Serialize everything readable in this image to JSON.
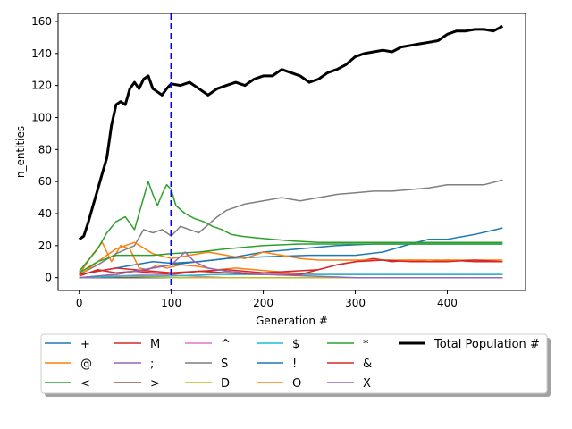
{
  "chart_data": {
    "type": "line",
    "title": "",
    "xlabel": "Generation #",
    "ylabel": "n_entities",
    "xlim": [
      -23,
      485
    ],
    "ylim": [
      -8,
      165
    ],
    "xticks": [
      0,
      100,
      200,
      300,
      400
    ],
    "yticks": [
      0,
      20,
      40,
      60,
      80,
      100,
      120,
      140,
      160
    ],
    "grid": false,
    "vline": {
      "x": 100,
      "color": "#0000ff",
      "style": "dashed"
    },
    "legend_placement": "below-plot",
    "series": [
      {
        "name": "+",
        "color": "#1f77b4",
        "points": [
          [
            0,
            2
          ],
          [
            20,
            4
          ],
          [
            40,
            6
          ],
          [
            60,
            8
          ],
          [
            80,
            10
          ],
          [
            100,
            9
          ],
          [
            130,
            10
          ],
          [
            160,
            12
          ],
          [
            200,
            13
          ],
          [
            250,
            14
          ],
          [
            300,
            14
          ],
          [
            330,
            16
          ],
          [
            360,
            21
          ],
          [
            380,
            24
          ],
          [
            400,
            24
          ],
          [
            430,
            27
          ],
          [
            460,
            31
          ]
        ]
      },
      {
        "name": "@",
        "color": "#ff7f0e",
        "points": [
          [
            0,
            2
          ],
          [
            15,
            15
          ],
          [
            25,
            22
          ],
          [
            35,
            10
          ],
          [
            45,
            20
          ],
          [
            55,
            18
          ],
          [
            65,
            6
          ],
          [
            75,
            5
          ],
          [
            85,
            8
          ],
          [
            95,
            6
          ],
          [
            110,
            8
          ],
          [
            130,
            7
          ],
          [
            150,
            5
          ],
          [
            170,
            6
          ],
          [
            190,
            5
          ],
          [
            210,
            4
          ],
          [
            230,
            3
          ],
          [
            260,
            2
          ],
          [
            300,
            2
          ],
          [
            350,
            2
          ],
          [
            400,
            2
          ],
          [
            460,
            2
          ]
        ]
      },
      {
        "name": "<",
        "color": "#2ca02c",
        "points": [
          [
            0,
            4
          ],
          [
            20,
            18
          ],
          [
            30,
            28
          ],
          [
            40,
            35
          ],
          [
            50,
            38
          ],
          [
            60,
            30
          ],
          [
            70,
            50
          ],
          [
            75,
            60
          ],
          [
            80,
            52
          ],
          [
            85,
            45
          ],
          [
            90,
            52
          ],
          [
            95,
            58
          ],
          [
            100,
            55
          ],
          [
            105,
            45
          ],
          [
            115,
            40
          ],
          [
            125,
            37
          ],
          [
            135,
            35
          ],
          [
            145,
            32
          ],
          [
            155,
            30
          ],
          [
            165,
            27
          ],
          [
            175,
            26
          ],
          [
            190,
            25
          ],
          [
            210,
            24
          ],
          [
            230,
            23
          ],
          [
            260,
            22
          ],
          [
            290,
            22
          ],
          [
            320,
            22
          ],
          [
            360,
            22
          ],
          [
            400,
            22
          ],
          [
            460,
            22
          ]
        ]
      },
      {
        "name": "M",
        "color": "#d62728",
        "points": [
          [
            0,
            1
          ],
          [
            20,
            5
          ],
          [
            40,
            3
          ],
          [
            60,
            4
          ],
          [
            80,
            3
          ],
          [
            100,
            2
          ],
          [
            130,
            4
          ],
          [
            160,
            5
          ],
          [
            200,
            3
          ],
          [
            230,
            4
          ],
          [
            260,
            5
          ],
          [
            280,
            8
          ],
          [
            300,
            10
          ],
          [
            320,
            12
          ],
          [
            340,
            10
          ],
          [
            360,
            11
          ],
          [
            380,
            10
          ],
          [
            400,
            11
          ],
          [
            430,
            10
          ],
          [
            460,
            10
          ]
        ]
      },
      {
        "name": ";",
        "color": "#9467bd",
        "points": [
          [
            0,
            0
          ],
          [
            50,
            0
          ],
          [
            100,
            0
          ],
          [
            200,
            0
          ],
          [
            300,
            0
          ],
          [
            400,
            0
          ],
          [
            460,
            0
          ]
        ]
      },
      {
        "name": ">",
        "color": "#8c564b",
        "points": [
          [
            0,
            0
          ],
          [
            50,
            0
          ],
          [
            100,
            0
          ],
          [
            200,
            0
          ],
          [
            300,
            0
          ],
          [
            400,
            0
          ],
          [
            460,
            0
          ]
        ]
      },
      {
        "name": "^",
        "color": "#e377c2",
        "points": [
          [
            0,
            0
          ],
          [
            40,
            1
          ],
          [
            80,
            2
          ],
          [
            120,
            1
          ],
          [
            160,
            0
          ],
          [
            200,
            0
          ],
          [
            300,
            0
          ],
          [
            400,
            0
          ],
          [
            460,
            0
          ]
        ]
      },
      {
        "name": "S",
        "color": "#7f7f7f",
        "points": [
          [
            0,
            2
          ],
          [
            20,
            8
          ],
          [
            40,
            15
          ],
          [
            60,
            20
          ],
          [
            70,
            30
          ],
          [
            80,
            28
          ],
          [
            90,
            30
          ],
          [
            100,
            26
          ],
          [
            110,
            32
          ],
          [
            120,
            30
          ],
          [
            130,
            28
          ],
          [
            140,
            33
          ],
          [
            150,
            38
          ],
          [
            160,
            42
          ],
          [
            170,
            44
          ],
          [
            180,
            46
          ],
          [
            200,
            48
          ],
          [
            220,
            50
          ],
          [
            240,
            48
          ],
          [
            260,
            50
          ],
          [
            280,
            52
          ],
          [
            300,
            53
          ],
          [
            320,
            54
          ],
          [
            340,
            54
          ],
          [
            360,
            55
          ],
          [
            380,
            56
          ],
          [
            400,
            58
          ],
          [
            420,
            58
          ],
          [
            440,
            58
          ],
          [
            460,
            61
          ]
        ]
      },
      {
        "name": "D",
        "color": "#bcbd22",
        "points": [
          [
            0,
            0
          ],
          [
            50,
            1
          ],
          [
            100,
            0
          ],
          [
            200,
            0
          ],
          [
            300,
            0
          ],
          [
            400,
            0
          ],
          [
            460,
            0
          ]
        ]
      },
      {
        "name": "$",
        "color": "#17becf",
        "points": [
          [
            0,
            0
          ],
          [
            50,
            1
          ],
          [
            100,
            1
          ],
          [
            150,
            2
          ],
          [
            200,
            2
          ],
          [
            250,
            2
          ],
          [
            300,
            2
          ],
          [
            350,
            2
          ],
          [
            400,
            2
          ],
          [
            460,
            2
          ]
        ]
      },
      {
        "name": "!",
        "color": "#1f77b4",
        "points": [
          [
            0,
            0
          ],
          [
            40,
            2
          ],
          [
            80,
            6
          ],
          [
            100,
            8
          ],
          [
            130,
            10
          ],
          [
            160,
            12
          ],
          [
            200,
            16
          ],
          [
            240,
            18
          ],
          [
            280,
            20
          ],
          [
            320,
            21
          ],
          [
            360,
            21
          ],
          [
            400,
            21
          ],
          [
            460,
            21
          ]
        ]
      },
      {
        "name": "O",
        "color": "#ff7f0e",
        "points": [
          [
            0,
            1
          ],
          [
            20,
            10
          ],
          [
            40,
            18
          ],
          [
            60,
            22
          ],
          [
            80,
            15
          ],
          [
            100,
            12
          ],
          [
            120,
            14
          ],
          [
            140,
            16
          ],
          [
            160,
            14
          ],
          [
            180,
            12
          ],
          [
            200,
            16
          ],
          [
            220,
            14
          ],
          [
            240,
            12
          ],
          [
            260,
            11
          ],
          [
            300,
            11
          ],
          [
            360,
            11
          ],
          [
            400,
            11
          ],
          [
            460,
            11
          ]
        ]
      },
      {
        "name": "*",
        "color": "#2ca02c",
        "points": [
          [
            0,
            3
          ],
          [
            20,
            10
          ],
          [
            40,
            14
          ],
          [
            60,
            14
          ],
          [
            80,
            14
          ],
          [
            100,
            15
          ],
          [
            130,
            16
          ],
          [
            160,
            18
          ],
          [
            200,
            20
          ],
          [
            240,
            21
          ],
          [
            280,
            21
          ],
          [
            320,
            21
          ],
          [
            360,
            21
          ],
          [
            400,
            21
          ],
          [
            460,
            21
          ]
        ]
      },
      {
        "name": "&",
        "color": "#d62728",
        "points": [
          [
            0,
            2
          ],
          [
            20,
            4
          ],
          [
            40,
            6
          ],
          [
            60,
            5
          ],
          [
            80,
            4
          ],
          [
            100,
            3
          ],
          [
            130,
            4
          ],
          [
            160,
            3
          ],
          [
            200,
            2
          ],
          [
            240,
            2
          ],
          [
            260,
            5
          ],
          [
            280,
            8
          ],
          [
            300,
            10
          ],
          [
            330,
            11
          ],
          [
            360,
            10
          ],
          [
            400,
            10
          ],
          [
            430,
            11
          ],
          [
            460,
            10
          ]
        ]
      },
      {
        "name": "X",
        "color": "#9467bd",
        "points": [
          [
            0,
            0
          ],
          [
            40,
            2
          ],
          [
            80,
            6
          ],
          [
            100,
            8
          ],
          [
            115,
            16
          ],
          [
            125,
            10
          ],
          [
            140,
            6
          ],
          [
            160,
            4
          ],
          [
            200,
            2
          ],
          [
            250,
            1
          ],
          [
            300,
            0
          ],
          [
            400,
            0
          ],
          [
            460,
            0
          ]
        ]
      },
      {
        "name": "Total Population #",
        "color": "#000000",
        "points": [
          [
            0,
            24
          ],
          [
            5,
            26
          ],
          [
            10,
            35
          ],
          [
            15,
            45
          ],
          [
            20,
            55
          ],
          [
            25,
            65
          ],
          [
            30,
            75
          ],
          [
            35,
            95
          ],
          [
            40,
            108
          ],
          [
            45,
            110
          ],
          [
            50,
            108
          ],
          [
            55,
            118
          ],
          [
            60,
            122
          ],
          [
            65,
            118
          ],
          [
            70,
            124
          ],
          [
            75,
            126
          ],
          [
            80,
            118
          ],
          [
            85,
            116
          ],
          [
            90,
            114
          ],
          [
            95,
            118
          ],
          [
            100,
            121
          ],
          [
            110,
            120
          ],
          [
            120,
            122
          ],
          [
            130,
            118
          ],
          [
            140,
            114
          ],
          [
            150,
            118
          ],
          [
            160,
            120
          ],
          [
            170,
            122
          ],
          [
            180,
            120
          ],
          [
            190,
            124
          ],
          [
            200,
            126
          ],
          [
            210,
            126
          ],
          [
            220,
            130
          ],
          [
            230,
            128
          ],
          [
            240,
            126
          ],
          [
            250,
            122
          ],
          [
            260,
            124
          ],
          [
            270,
            128
          ],
          [
            280,
            130
          ],
          [
            290,
            133
          ],
          [
            300,
            138
          ],
          [
            310,
            140
          ],
          [
            320,
            141
          ],
          [
            330,
            142
          ],
          [
            340,
            141
          ],
          [
            350,
            144
          ],
          [
            360,
            145
          ],
          [
            370,
            146
          ],
          [
            380,
            147
          ],
          [
            390,
            148
          ],
          [
            400,
            152
          ],
          [
            410,
            154
          ],
          [
            420,
            154
          ],
          [
            430,
            155
          ],
          [
            440,
            155
          ],
          [
            450,
            154
          ],
          [
            460,
            157
          ]
        ]
      }
    ]
  }
}
